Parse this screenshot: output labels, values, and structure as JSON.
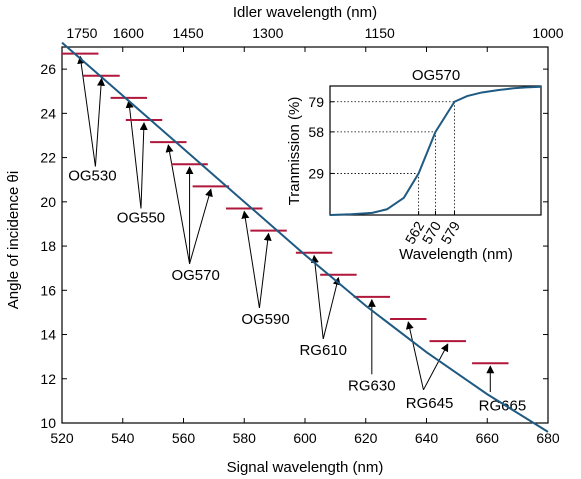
{
  "chart_data": [
    {
      "type": "line",
      "xlabel": "Signal wavelength  (nm)",
      "x2label": "Idler wavelength  (nm)",
      "ylabel": "Angle of incidence θi",
      "xlim": [
        520,
        680
      ],
      "ylim": [
        10,
        27
      ],
      "xticks": [
        "520",
        "540",
        "560",
        "580",
        "600",
        "620",
        "640",
        "660",
        "680"
      ],
      "yticks": [
        "10",
        "12",
        "14",
        "16",
        "18",
        "20",
        "22",
        "24",
        "26"
      ],
      "x2ticks": [
        {
          "label": "1750",
          "value": 1750
        },
        {
          "label": "1600",
          "value": 1600
        },
        {
          "label": "1450",
          "value": 1450
        },
        {
          "label": "1300",
          "value": 1300
        },
        {
          "label": "1150",
          "value": 1150
        },
        {
          "label": "1000",
          "value": 1000
        }
      ],
      "curve": {
        "color": "#1f5a82",
        "x": [
          520,
          540,
          560,
          580,
          600,
          620,
          640,
          660,
          680
        ],
        "y": [
          27.2,
          24.8,
          22.4,
          20.0,
          17.6,
          15.3,
          13.2,
          11.3,
          9.6
        ]
      },
      "segments": {
        "color": "#b0173a",
        "half_width_nm": 6,
        "points": [
          {
            "x": 526,
            "y": 26.7
          },
          {
            "x": 533,
            "y": 25.7
          },
          {
            "x": 542,
            "y": 24.7
          },
          {
            "x": 547,
            "y": 23.7
          },
          {
            "x": 555,
            "y": 22.7
          },
          {
            "x": 562,
            "y": 21.7
          },
          {
            "x": 569,
            "y": 20.7
          },
          {
            "x": 580,
            "y": 19.7
          },
          {
            "x": 588,
            "y": 18.7
          },
          {
            "x": 603,
            "y": 17.7
          },
          {
            "x": 611,
            "y": 16.7
          },
          {
            "x": 622,
            "y": 15.7
          },
          {
            "x": 634,
            "y": 14.7
          },
          {
            "x": 647,
            "y": 13.7
          },
          {
            "x": 661,
            "y": 12.7
          }
        ]
      },
      "annotations": [
        {
          "text": "OG530",
          "tx": 530,
          "ty": 21.2,
          "sx": 531,
          "sy": 21.6,
          "targets": [
            0,
            1
          ]
        },
        {
          "text": "OG550",
          "tx": 546,
          "ty": 19.3,
          "sx": 546,
          "sy": 19.7,
          "targets": [
            2,
            3
          ]
        },
        {
          "text": "OG570",
          "tx": 564,
          "ty": 16.7,
          "sx": 562,
          "sy": 17.2,
          "targets": [
            4,
            5,
            6
          ]
        },
        {
          "text": "OG590",
          "tx": 587,
          "ty": 14.7,
          "sx": 585,
          "sy": 15.2,
          "targets": [
            7,
            8
          ]
        },
        {
          "text": "RG610",
          "tx": 606,
          "ty": 13.3,
          "sx": 606,
          "sy": 13.8,
          "targets": [
            9,
            10
          ]
        },
        {
          "text": "RG630",
          "tx": 622,
          "ty": 11.7,
          "sx": 622,
          "sy": 12.2,
          "targets": [
            11
          ]
        },
        {
          "text": "RG645",
          "tx": 641,
          "ty": 10.9,
          "sx": 639,
          "sy": 11.5,
          "targets": [
            12,
            13
          ]
        },
        {
          "text": "RG665",
          "tx": 665,
          "ty": 10.8,
          "sx": 661,
          "sy": 11.4,
          "targets": [
            14
          ]
        }
      ]
    },
    {
      "type": "line",
      "title": "OG570",
      "xlabel": "Wavelength (nm)",
      "ylabel": "Tranmission (%)",
      "xlim": [
        520,
        620
      ],
      "ylim": [
        0,
        90
      ],
      "yticks": [
        "29",
        "58",
        "79"
      ],
      "xticks": [
        "562",
        "570",
        "579"
      ],
      "markers": [
        {
          "x": 562,
          "y": 29
        },
        {
          "x": 570,
          "y": 58
        },
        {
          "x": 579,
          "y": 79
        }
      ],
      "curve": {
        "color": "#1f5a82",
        "x": [
          520,
          530,
          540,
          547,
          555,
          562,
          570,
          579,
          585,
          592,
          600,
          607,
          613,
          620
        ],
        "y": [
          0,
          0.5,
          1.5,
          4,
          12,
          29,
          58,
          79,
          83,
          85.5,
          87.2,
          88.4,
          89,
          89.5
        ]
      }
    }
  ]
}
